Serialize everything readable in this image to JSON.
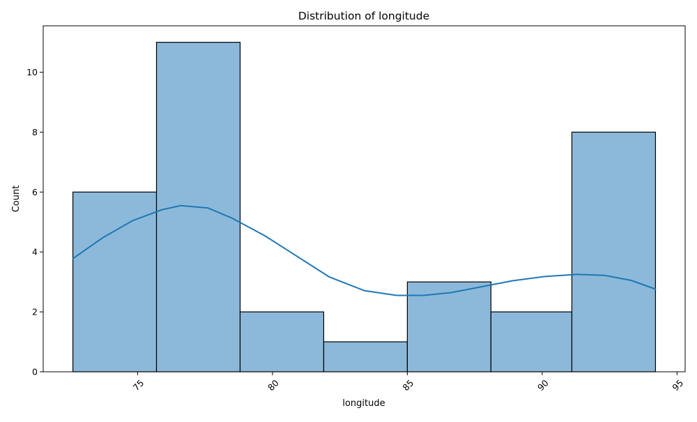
{
  "chart_data": {
    "type": "bar",
    "title": "Distribution of longitude",
    "xlabel": "longitude",
    "ylabel": "Count",
    "bins": [
      {
        "start": 72.6,
        "end": 75.7,
        "count": 6
      },
      {
        "start": 75.7,
        "end": 78.8,
        "count": 11
      },
      {
        "start": 78.8,
        "end": 81.9,
        "count": 2
      },
      {
        "start": 81.9,
        "end": 85.0,
        "count": 1
      },
      {
        "start": 85.0,
        "end": 88.1,
        "count": 3
      },
      {
        "start": 88.1,
        "end": 91.1,
        "count": 2
      },
      {
        "start": 91.1,
        "end": 94.2,
        "count": 8
      }
    ],
    "kde": {
      "x": [
        72.6,
        73.7,
        74.8,
        75.9,
        76.6,
        77.6,
        78.5,
        79.7,
        80.9,
        82.1,
        83.4,
        84.6,
        85.6,
        86.6,
        87.7,
        88.9,
        90.1,
        91.3,
        92.3,
        93.3,
        94.2
      ],
      "y": [
        3.78,
        4.47,
        5.04,
        5.41,
        5.55,
        5.47,
        5.13,
        4.55,
        3.86,
        3.17,
        2.71,
        2.55,
        2.55,
        2.64,
        2.83,
        3.04,
        3.18,
        3.25,
        3.22,
        3.05,
        2.76
      ]
    },
    "xlim": [
      71.5,
      95.3
    ],
    "ylim": [
      0,
      11.55
    ],
    "xticks": [
      75,
      80,
      85,
      90,
      95
    ],
    "yticks": [
      0,
      2,
      4,
      6,
      8,
      10
    ],
    "xtick_rotation": 45,
    "grid": false,
    "colors": {
      "bar_fill": "#8cb9da",
      "bar_edge": "#000000",
      "kde_line": "#1f77b4"
    }
  }
}
